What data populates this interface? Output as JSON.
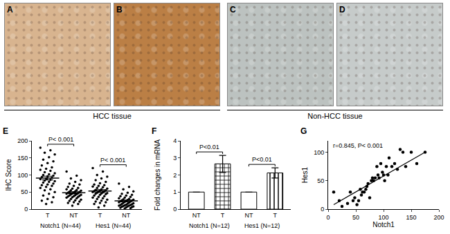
{
  "images": {
    "panels": [
      {
        "letter": "A",
        "color": "#d8b48f"
      },
      {
        "letter": "B",
        "color": "#bb7f45"
      },
      {
        "letter": "C",
        "color": "#bcc2c0"
      },
      {
        "letter": "D",
        "color": "#c6cbca"
      }
    ],
    "captions": [
      {
        "text": "HCC tissue",
        "panels": [
          "A",
          "B"
        ]
      },
      {
        "text": "Non-HCC tissue",
        "panels": [
          "C",
          "D"
        ]
      }
    ]
  },
  "chart_data": [
    {
      "panel": "E",
      "type": "dot",
      "ylabel": "IHC Score",
      "color": "#000000",
      "ylim": [
        0,
        200
      ],
      "yticks": [
        0,
        50,
        100,
        150,
        200
      ],
      "groups": [
        {
          "label": "Notch1 (N=44)",
          "p_label": "P< 0.001",
          "series": [
            {
              "category": "T",
              "mean": 91,
              "sem": 5.5,
              "values": [
                180,
                172,
                165,
                160,
                152,
                145,
                140,
                135,
                128,
                122,
                118,
                115,
                112,
                108,
                105,
                102,
                100,
                98,
                96,
                94,
                92,
                90,
                88,
                86,
                84,
                82,
                80,
                78,
                75,
                72,
                70,
                68,
                65,
                62,
                58,
                55,
                50,
                45,
                40,
                35,
                30,
                25,
                20,
                15
              ]
            },
            {
              "category": "NT",
              "mean": 48,
              "sem": 3,
              "values": [
                110,
                98,
                90,
                85,
                80,
                75,
                72,
                68,
                65,
                62,
                60,
                58,
                56,
                55,
                54,
                52,
                51,
                50,
                49,
                48,
                47,
                46,
                45,
                44,
                43,
                42,
                41,
                40,
                39,
                38,
                37,
                36,
                35,
                34,
                32,
                30,
                28,
                26,
                24,
                22,
                20,
                18,
                15,
                10
              ]
            }
          ]
        },
        {
          "label": "Hes1 (N=44)",
          "p_label": "P< 0.001",
          "series": [
            {
              "category": "T",
              "mean": 53,
              "sem": 4,
              "values": [
                120,
                110,
                100,
                95,
                90,
                85,
                80,
                76,
                72,
                70,
                68,
                66,
                64,
                62,
                60,
                58,
                56,
                55,
                54,
                53,
                52,
                51,
                50,
                49,
                48,
                47,
                46,
                45,
                44,
                42,
                40,
                38,
                36,
                34,
                32,
                30,
                28,
                25,
                22,
                20,
                18,
                15,
                10,
                5
              ]
            },
            {
              "category": "NT",
              "mean": 24,
              "sem": 2.5,
              "values": [
                75,
                65,
                58,
                52,
                48,
                45,
                42,
                40,
                38,
                36,
                34,
                32,
                30,
                29,
                28,
                27,
                26,
                25,
                24,
                23,
                22,
                21,
                20,
                19,
                18,
                17,
                16,
                15,
                14,
                13,
                12,
                12,
                11,
                10,
                10,
                9,
                8,
                8,
                7,
                6,
                5,
                4,
                3,
                2
              ]
            }
          ]
        }
      ]
    },
    {
      "panel": "F",
      "type": "bar",
      "ylabel": "Fold changes in mRNA",
      "color": "#ffffff",
      "ylim": [
        0,
        4
      ],
      "yticks": [
        0,
        1,
        2,
        3,
        4
      ],
      "groups": [
        {
          "label": "Notch1 (N=12)",
          "p_label": "P<0.01",
          "series": [
            {
              "category": "NT",
              "value": 1,
              "error": 0,
              "marker": "plain"
            },
            {
              "category": "T",
              "value": 2.65,
              "error": 0.5,
              "marker": "checkered"
            }
          ]
        },
        {
          "label": "Hes1 (N=12)",
          "p_label": "P<0.01",
          "series": [
            {
              "category": "NT",
              "value": 1,
              "error": 0,
              "marker": "plain"
            },
            {
              "category": "T",
              "value": 2.12,
              "error": 0.3,
              "marker": "striped"
            }
          ]
        }
      ]
    },
    {
      "panel": "G",
      "type": "scatter",
      "xlabel": "Notch1",
      "ylabel": "Hes1",
      "color": "#000000",
      "annotation": "r=0.845, P< 0.001",
      "xlim": [
        0,
        200
      ],
      "xticks": [
        0,
        50,
        100,
        150,
        200
      ],
      "ylim": [
        0,
        120
      ],
      "yticks": [
        0,
        50,
        100
      ],
      "x": [
        10,
        20,
        25,
        35,
        40,
        45,
        48,
        52,
        55,
        58,
        60,
        62,
        65,
        68,
        70,
        72,
        75,
        78,
        80,
        82,
        85,
        88,
        90,
        92,
        95,
        98,
        100,
        102,
        105,
        108,
        110,
        115,
        120,
        125,
        130,
        135,
        140,
        150,
        160,
        175
      ],
      "values": [
        30,
        15,
        5,
        10,
        30,
        15,
        20,
        8,
        15,
        35,
        25,
        30,
        30,
        35,
        40,
        45,
        20,
        50,
        55,
        50,
        55,
        75,
        60,
        55,
        80,
        65,
        60,
        50,
        75,
        60,
        90,
        75,
        80,
        70,
        105,
        100,
        75,
        100,
        80,
        100
      ],
      "fit": {
        "x": [
          10,
          175
        ],
        "values": [
          8,
          100
        ]
      }
    }
  ]
}
